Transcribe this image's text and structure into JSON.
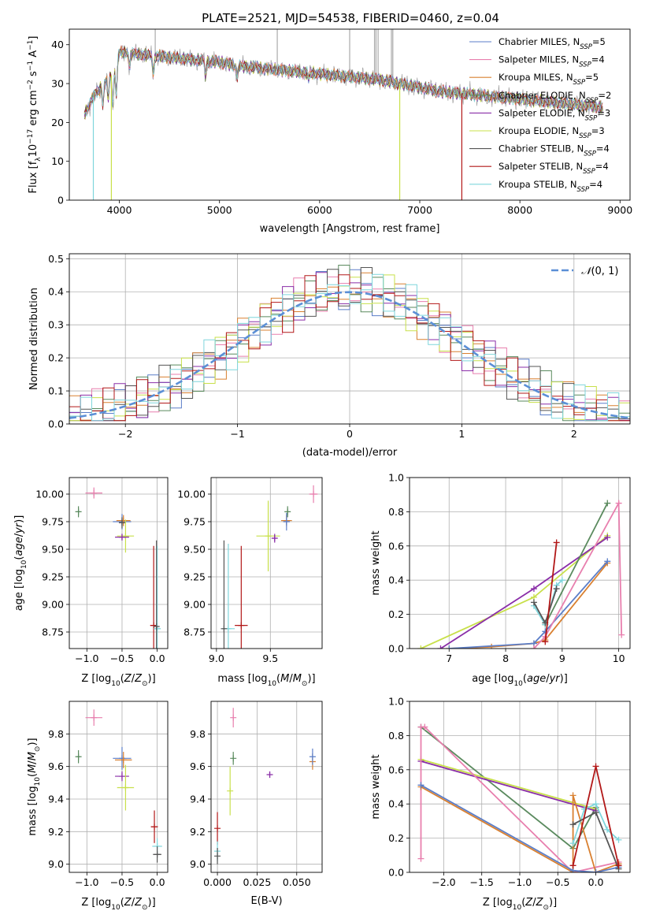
{
  "title": "PLATE=2521, MJD=54538, FIBERID=0460, z=0.04",
  "colors": {
    "chabrier_miles": "#5b7ec8",
    "salpeter_miles": "#e87fae",
    "kroupa_miles": "#d98030",
    "chabrier_elodie": "#5a8a5e",
    "salpeter_elodie": "#8a2ea8",
    "kroupa_elodie": "#c8e04a",
    "chabrier_stelib": "#555555",
    "salpeter_stelib": "#b21818",
    "kroupa_stelib": "#7fd6dc",
    "normal": "#5b8fd6"
  },
  "chart_data": [
    {
      "id": "spectrum",
      "type": "line",
      "xlabel": "wavelength [Angstrom, rest frame]",
      "ylabel": "Flux [f_λ 10^-17 erg cm^-2 s^-1 A^-1]",
      "xlim": [
        3500,
        9100
      ],
      "ylim": [
        0,
        44
      ],
      "xticks": [
        4000,
        5000,
        6000,
        7000,
        8000,
        9000
      ],
      "yticks": [
        0,
        10,
        20,
        30,
        40
      ],
      "legend_position": "top-right",
      "legend": [
        {
          "key": "chabrier_miles",
          "label": "Chabrier MILES, N",
          "sub": "SSP",
          "rest": "=5"
        },
        {
          "key": "salpeter_miles",
          "label": "Salpeter MILES, N",
          "sub": "SSP",
          "rest": "=4"
        },
        {
          "key": "kroupa_miles",
          "label": "Kroupa MILES, N",
          "sub": "SSP",
          "rest": "=5"
        },
        {
          "key": "chabrier_elodie",
          "label": "Chabrier ELODIE, N",
          "sub": "SSP",
          "rest": "=2"
        },
        {
          "key": "salpeter_elodie",
          "label": "Salpeter ELODIE, N",
          "sub": "SSP",
          "rest": "=3"
        },
        {
          "key": "kroupa_elodie",
          "label": "Kroupa ELODIE, N",
          "sub": "SSP",
          "rest": "=3"
        },
        {
          "key": "chabrier_stelib",
          "label": "Chabrier STELIB, N",
          "sub": "SSP",
          "rest": "=4"
        },
        {
          "key": "salpeter_stelib",
          "label": "Salpeter STELIB, N",
          "sub": "SSP",
          "rest": "=4"
        },
        {
          "key": "kroupa_stelib",
          "label": "Kroupa STELIB, N",
          "sub": "SSP",
          "rest": "=4"
        }
      ],
      "continuum": [
        [
          3650,
          22
        ],
        [
          3750,
          27
        ],
        [
          3850,
          30
        ],
        [
          3950,
          33
        ],
        [
          4000,
          38
        ],
        [
          4100,
          38
        ],
        [
          4200,
          37.5
        ],
        [
          4400,
          37
        ],
        [
          4600,
          36.5
        ],
        [
          4800,
          36
        ],
        [
          5000,
          35.5
        ],
        [
          5200,
          34.5
        ],
        [
          5400,
          34
        ],
        [
          5600,
          33.5
        ],
        [
          5800,
          33
        ],
        [
          6000,
          32.5
        ],
        [
          6200,
          32
        ],
        [
          6400,
          31.5
        ],
        [
          6600,
          31
        ],
        [
          6800,
          30
        ],
        [
          7000,
          29
        ],
        [
          7200,
          28
        ],
        [
          7400,
          27.5
        ],
        [
          7600,
          27
        ],
        [
          7800,
          26.5
        ],
        [
          8000,
          26
        ],
        [
          8200,
          25.5
        ],
        [
          8400,
          25
        ],
        [
          8600,
          24.5
        ],
        [
          8800,
          24
        ]
      ],
      "dropouts": [
        {
          "key": "kroupa_stelib",
          "x": 3740
        },
        {
          "key": "kroupa_elodie",
          "x": 3920
        },
        {
          "key": "kroupa_elodie",
          "x": 6800
        },
        {
          "key": "salpeter_stelib",
          "x": 7420
        }
      ]
    },
    {
      "id": "residuals",
      "type": "histogram",
      "xlabel": "(data-model)/error",
      "ylabel": "Normed distribution",
      "xlim": [
        -2.5,
        2.5
      ],
      "ylim": [
        0,
        0.515
      ],
      "xticks": [
        -2,
        -1,
        0,
        1,
        2
      ],
      "yticks": [
        0.0,
        0.1,
        0.2,
        0.3,
        0.4,
        0.5
      ],
      "bin_width": 0.1,
      "grid": true,
      "legend_position": "top-right",
      "legend_label": "N(0,1)"
    },
    {
      "id": "age_vs_Z",
      "type": "scatter",
      "xlabel": "Z [log10(Z/Z⊙)]",
      "ylabel": "age [log10(age/yr)]",
      "xlim": [
        -1.25,
        0.15
      ],
      "ylim": [
        8.6,
        10.15
      ],
      "xticks": [
        -1.0,
        -0.5,
        0.0
      ],
      "yticks": [
        8.75,
        9.0,
        9.25,
        9.5,
        9.75,
        10.0
      ],
      "grid": true,
      "points": [
        {
          "key": "salpeter_miles",
          "x": -0.9,
          "y": 10.01,
          "xerr": 0.12,
          "yerr": 0.05
        },
        {
          "key": "chabrier_elodie",
          "x": -1.12,
          "y": 9.84,
          "xerr": 0.02,
          "yerr": 0.05
        },
        {
          "key": "chabrier_miles",
          "x": -0.5,
          "y": 9.75,
          "xerr": 0.13,
          "yerr": 0.07
        },
        {
          "key": "kroupa_miles",
          "x": -0.48,
          "y": 9.76,
          "xerr": 0.1,
          "yerr": 0.05
        },
        {
          "key": "chabrier_stelib",
          "x": -0.5,
          "y": 9.74,
          "xerr": 0.02,
          "yerr": 0.05
        },
        {
          "key": "kroupa_elodie",
          "x": -0.45,
          "y": 9.62,
          "xerr": 0.12,
          "yerr": 0.15
        },
        {
          "key": "salpeter_elodie",
          "x": -0.5,
          "y": 9.61,
          "xerr": 0.1,
          "yerr": 0.03
        },
        {
          "key": "salpeter_stelib",
          "x": -0.05,
          "y": 8.81,
          "xerr": 0.05,
          "yerr": 0.72
        },
        {
          "key": "kroupa_stelib",
          "x": 0.0,
          "y": 8.78,
          "xerr": 0.05,
          "yerr": 0.75
        },
        {
          "key": "chabrier_stelib",
          "x": -0.01,
          "y": 8.8,
          "xerr": 0.01,
          "yerr": 0.78
        }
      ]
    },
    {
      "id": "age_vs_mass",
      "type": "scatter",
      "xlabel": "mass [log10(M/M⊙)]",
      "ylabel": "",
      "xlim": [
        8.95,
        9.98
      ],
      "ylim": [
        8.6,
        10.15
      ],
      "xticks": [
        9.0,
        9.5
      ],
      "yticks": [
        8.75,
        9.0,
        9.25,
        9.5,
        9.75,
        10.0
      ],
      "grid": true,
      "points": [
        {
          "key": "salpeter_miles",
          "x": 9.9,
          "y": 10.0,
          "xerr": 0.04,
          "yerr": 0.08
        },
        {
          "key": "chabrier_elodie",
          "x": 9.66,
          "y": 9.84,
          "xerr": 0.01,
          "yerr": 0.05
        },
        {
          "key": "kroupa_miles",
          "x": 9.65,
          "y": 9.76,
          "xerr": 0.05,
          "yerr": 0.05
        },
        {
          "key": "chabrier_miles",
          "x": 9.65,
          "y": 9.75,
          "xerr": 0.03,
          "yerr": 0.08
        },
        {
          "key": "kroupa_elodie",
          "x": 9.48,
          "y": 9.62,
          "xerr": 0.11,
          "yerr": 0.32
        },
        {
          "key": "salpeter_elodie",
          "x": 9.54,
          "y": 9.6,
          "xerr": 0.02,
          "yerr": 0.04
        },
        {
          "key": "salpeter_stelib",
          "x": 9.23,
          "y": 8.81,
          "xerr": 0.06,
          "yerr": 0.72
        },
        {
          "key": "kroupa_stelib",
          "x": 9.11,
          "y": 8.78,
          "xerr": 0.06,
          "yerr": 0.77
        },
        {
          "key": "chabrier_stelib",
          "x": 9.07,
          "y": 8.78,
          "xerr": 0.01,
          "yerr": 0.8
        }
      ]
    },
    {
      "id": "weight_vs_age",
      "type": "line",
      "xlabel": "age [log10(age/yr)]",
      "ylabel": "mass weight",
      "xlim": [
        6.3,
        10.2
      ],
      "ylim": [
        0,
        1.0
      ],
      "xticks": [
        7,
        8,
        9,
        10
      ],
      "yticks": [
        0.0,
        0.2,
        0.4,
        0.6,
        0.8,
        1.0
      ],
      "grid": true,
      "series": [
        {
          "key": "kroupa_elodie",
          "x": [
            6.5,
            8.5,
            9.8
          ],
          "y": [
            0.0,
            0.3,
            0.66
          ]
        },
        {
          "key": "salpeter_elodie",
          "x": [
            6.85,
            8.5,
            9.8
          ],
          "y": [
            0.0,
            0.35,
            0.65
          ]
        },
        {
          "key": "chabrier_elodie",
          "x": [
            8.7,
            9.8
          ],
          "y": [
            0.14,
            0.85
          ]
        },
        {
          "key": "kroupa_miles",
          "x": [
            7.0,
            7.75,
            8.5,
            8.7,
            9.8
          ],
          "y": [
            0.0,
            0.01,
            0.03,
            0.05,
            0.5
          ]
        },
        {
          "key": "chabrier_miles",
          "x": [
            7.0,
            8.5,
            8.7,
            9.8
          ],
          "y": [
            0.0,
            0.03,
            0.1,
            0.51
          ]
        },
        {
          "key": "salpeter_miles",
          "x": [
            8.5,
            8.7,
            10.0,
            10.05
          ],
          "y": [
            0.0,
            0.07,
            0.85,
            0.08
          ]
        },
        {
          "key": "kroupa_stelib",
          "x": [
            8.5,
            8.7,
            8.9,
            9.0
          ],
          "y": [
            0.25,
            0.14,
            0.37,
            0.4
          ]
        },
        {
          "key": "chabrier_stelib",
          "x": [
            8.5,
            8.7,
            8.9
          ],
          "y": [
            0.27,
            0.15,
            0.35
          ]
        },
        {
          "key": "salpeter_stelib",
          "x": [
            8.7,
            8.9
          ],
          "y": [
            0.04,
            0.62
          ]
        }
      ]
    },
    {
      "id": "mass_vs_Z",
      "type": "scatter",
      "xlabel": "Z [log10(Z/Z⊙)]",
      "ylabel": "mass [log10(M/M⊙)]",
      "xlim": [
        -1.25,
        0.15
      ],
      "ylim": [
        8.95,
        10.0
      ],
      "xticks": [
        -1.0,
        -0.5,
        0.0
      ],
      "yticks": [
        9.0,
        9.2,
        9.4,
        9.6,
        9.8
      ],
      "grid": true,
      "points": [
        {
          "key": "salpeter_miles",
          "x": -0.9,
          "y": 9.9,
          "xerr": 0.12,
          "yerr": 0.05
        },
        {
          "key": "chabrier_elodie",
          "x": -1.12,
          "y": 9.66,
          "xerr": 0.02,
          "yerr": 0.04
        },
        {
          "key": "chabrier_miles",
          "x": -0.5,
          "y": 9.65,
          "xerr": 0.13,
          "yerr": 0.07
        },
        {
          "key": "kroupa_miles",
          "x": -0.48,
          "y": 9.64,
          "xerr": 0.12,
          "yerr": 0.05
        },
        {
          "key": "salpeter_elodie",
          "x": -0.5,
          "y": 9.54,
          "xerr": 0.1,
          "yerr": 0.03
        },
        {
          "key": "kroupa_elodie",
          "x": -0.45,
          "y": 9.47,
          "xerr": 0.12,
          "yerr": 0.14
        },
        {
          "key": "salpeter_stelib",
          "x": -0.04,
          "y": 9.23,
          "xerr": 0.05,
          "yerr": 0.1
        },
        {
          "key": "kroupa_stelib",
          "x": 0.0,
          "y": 9.11,
          "xerr": 0.07,
          "yerr": 0.05
        },
        {
          "key": "chabrier_stelib",
          "x": 0.0,
          "y": 9.06,
          "xerr": 0.06,
          "yerr": 0.05
        }
      ]
    },
    {
      "id": "mass_vs_ebv",
      "type": "scatter",
      "xlabel": "E(B-V)",
      "ylabel": "",
      "xlim": [
        -0.004,
        0.066
      ],
      "ylim": [
        8.95,
        10.0
      ],
      "xticks": [
        0.0,
        0.025,
        0.05
      ],
      "xticklabels": [
        "0.000",
        "0.025",
        "0.050"
      ],
      "yticks": [
        9.0,
        9.2,
        9.4,
        9.6,
        9.8
      ],
      "grid": true,
      "points": [
        {
          "key": "salpeter_miles",
          "x": 0.01,
          "y": 9.9,
          "xerr": 0.0,
          "yerr": 0.06
        },
        {
          "key": "chabrier_elodie",
          "x": 0.01,
          "y": 9.65,
          "xerr": 0.0,
          "yerr": 0.04
        },
        {
          "key": "kroupa_miles",
          "x": 0.06,
          "y": 9.63,
          "xerr": 0.0,
          "yerr": 0.05
        },
        {
          "key": "chabrier_miles",
          "x": 0.06,
          "y": 9.66,
          "xerr": 0.0,
          "yerr": 0.05
        },
        {
          "key": "salpeter_elodie",
          "x": 0.033,
          "y": 9.55,
          "xerr": 0.0,
          "yerr": 0.02
        },
        {
          "key": "kroupa_elodie",
          "x": 0.008,
          "y": 9.45,
          "xerr": 0.0,
          "yerr": 0.15
        },
        {
          "key": "salpeter_stelib",
          "x": 0.0,
          "y": 9.22,
          "xerr": 0.0,
          "yerr": 0.1
        },
        {
          "key": "kroupa_stelib",
          "x": 0.0,
          "y": 9.08,
          "xerr": 0.0,
          "yerr": 0.06
        },
        {
          "key": "chabrier_stelib",
          "x": 0.0,
          "y": 9.05,
          "xerr": 0.0,
          "yerr": 0.05
        }
      ]
    },
    {
      "id": "weight_vs_Z",
      "type": "line",
      "xlabel": "Z [log10(Z/Z⊙)]",
      "ylabel": "mass weight",
      "xlim": [
        -2.45,
        0.45
      ],
      "ylim": [
        0,
        1.0
      ],
      "xticks": [
        -2.0,
        -1.5,
        -1.0,
        -0.5,
        0.0
      ],
      "yticks": [
        0.0,
        0.2,
        0.4,
        0.6,
        0.8,
        1.0
      ],
      "grid": true,
      "series": [
        {
          "key": "chabrier_elodie",
          "x": [
            -2.3,
            -0.3,
            0.0
          ],
          "y": [
            0.85,
            0.14,
            0.38
          ]
        },
        {
          "key": "kroupa_elodie",
          "x": [
            -2.3,
            0.0
          ],
          "y": [
            0.66,
            0.37
          ]
        },
        {
          "key": "salpeter_elodie",
          "x": [
            -2.3,
            0.0
          ],
          "y": [
            0.65,
            0.36
          ]
        },
        {
          "key": "salpeter_miles",
          "x": [
            -2.3,
            -2.3,
            -2.25,
            -0.3,
            0.3
          ],
          "y": [
            0.08,
            0.85,
            0.85,
            0.0,
            0.06
          ]
        },
        {
          "key": "kroupa_miles",
          "x": [
            -2.3,
            -0.3,
            -0.3,
            0.0,
            0.3
          ],
          "y": [
            0.5,
            0.0,
            0.45,
            0.0,
            0.05
          ]
        },
        {
          "key": "chabrier_miles",
          "x": [
            -2.3,
            -0.3,
            0.0,
            0.3
          ],
          "y": [
            0.51,
            0.01,
            0.0,
            0.03
          ]
        },
        {
          "key": "kroupa_stelib",
          "x": [
            -0.3,
            -0.15,
            0.0,
            0.15,
            0.3
          ],
          "y": [
            0.17,
            0.37,
            0.4,
            0.25,
            0.19
          ]
        },
        {
          "key": "chabrier_stelib",
          "x": [
            -0.3,
            0.0,
            0.3
          ],
          "y": [
            0.28,
            0.35,
            0.02
          ]
        },
        {
          "key": "salpeter_stelib",
          "x": [
            -0.3,
            0.0,
            0.3
          ],
          "y": [
            0.04,
            0.62,
            0.04
          ]
        }
      ]
    }
  ]
}
